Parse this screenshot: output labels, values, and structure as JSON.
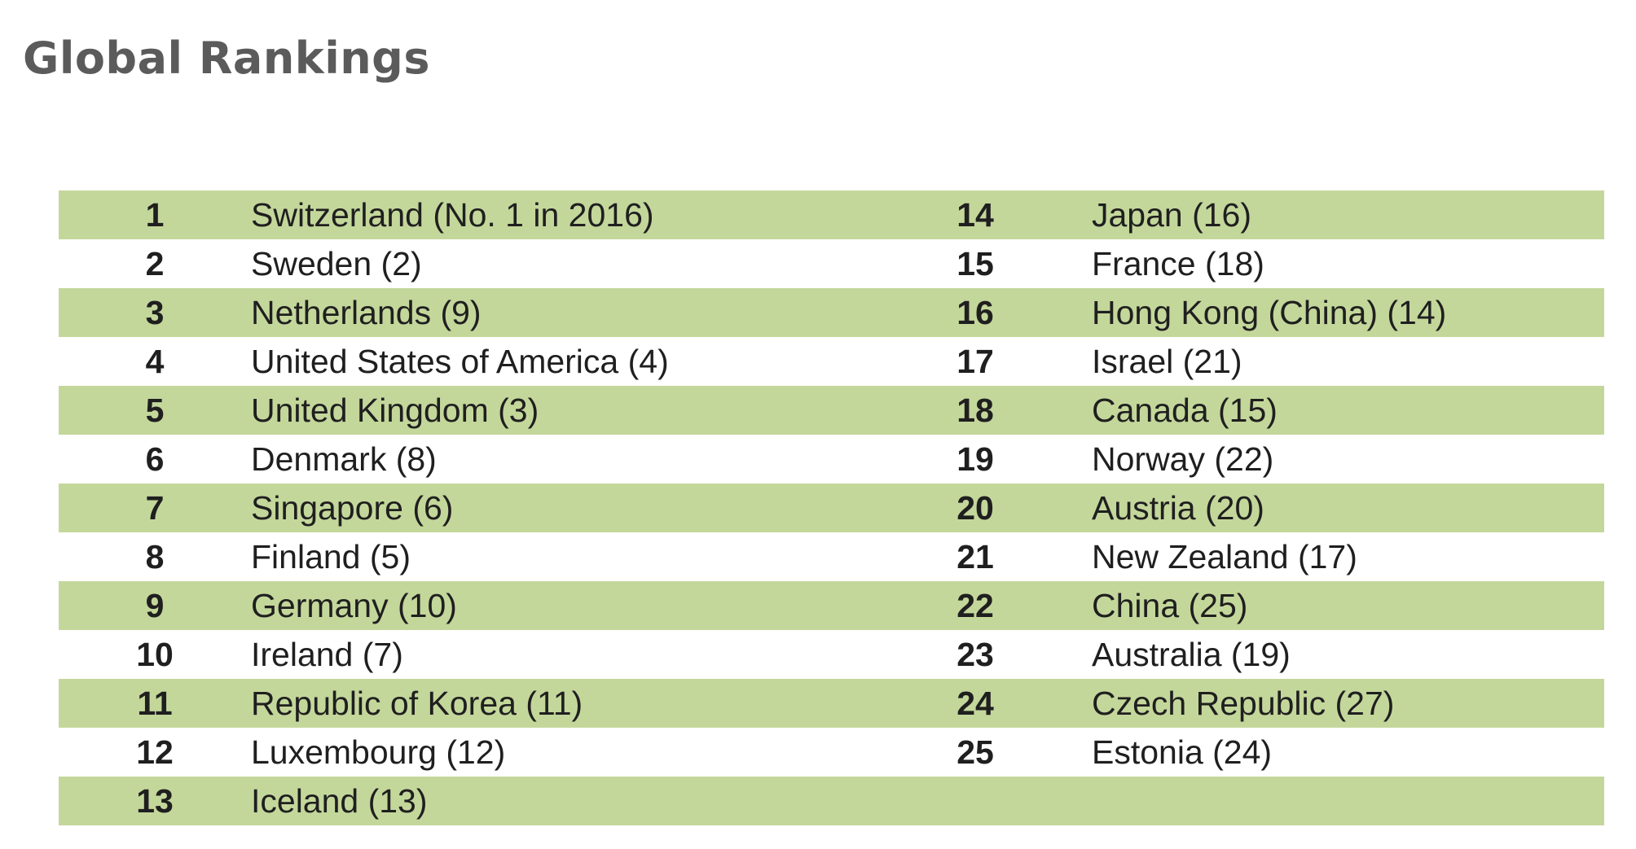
{
  "title": "Global Rankings",
  "rows": [
    {
      "rank_a": "1",
      "name_a": "Switzerland (No. 1 in 2016)",
      "rank_b": "14",
      "name_b": "Japan (16)"
    },
    {
      "rank_a": "2",
      "name_a": "Sweden (2)",
      "rank_b": "15",
      "name_b": "France (18)"
    },
    {
      "rank_a": "3",
      "name_a": "Netherlands (9)",
      "rank_b": "16",
      "name_b": "Hong Kong (China) (14)"
    },
    {
      "rank_a": "4",
      "name_a": "United States of America (4)",
      "rank_b": "17",
      "name_b": "Israel (21)"
    },
    {
      "rank_a": "5",
      "name_a": "United Kingdom (3)",
      "rank_b": "18",
      "name_b": "Canada (15)"
    },
    {
      "rank_a": "6",
      "name_a": "Denmark (8)",
      "rank_b": "19",
      "name_b": "Norway (22)"
    },
    {
      "rank_a": "7",
      "name_a": "Singapore (6)",
      "rank_b": "20",
      "name_b": "Austria (20)"
    },
    {
      "rank_a": "8",
      "name_a": "Finland (5)",
      "rank_b": "21",
      "name_b": "New Zealand (17)"
    },
    {
      "rank_a": "9",
      "name_a": "Germany (10)",
      "rank_b": "22",
      "name_b": "China (25)"
    },
    {
      "rank_a": "10",
      "name_a": "Ireland (7)",
      "rank_b": "23",
      "name_b": "Australia (19)"
    },
    {
      "rank_a": "11",
      "name_a": "Republic of Korea (11)",
      "rank_b": "24",
      "name_b": "Czech Republic (27)"
    },
    {
      "rank_a": "12",
      "name_a": "Luxembourg (12)",
      "rank_b": "25",
      "name_b": "Estonia (24)"
    },
    {
      "rank_a": "13",
      "name_a": "Iceland (13)",
      "rank_b": "",
      "name_b": ""
    }
  ],
  "colors": {
    "row_shade": "#c4d79b",
    "title_text": "#5b5b5b",
    "body_text": "#1f1f1f"
  }
}
